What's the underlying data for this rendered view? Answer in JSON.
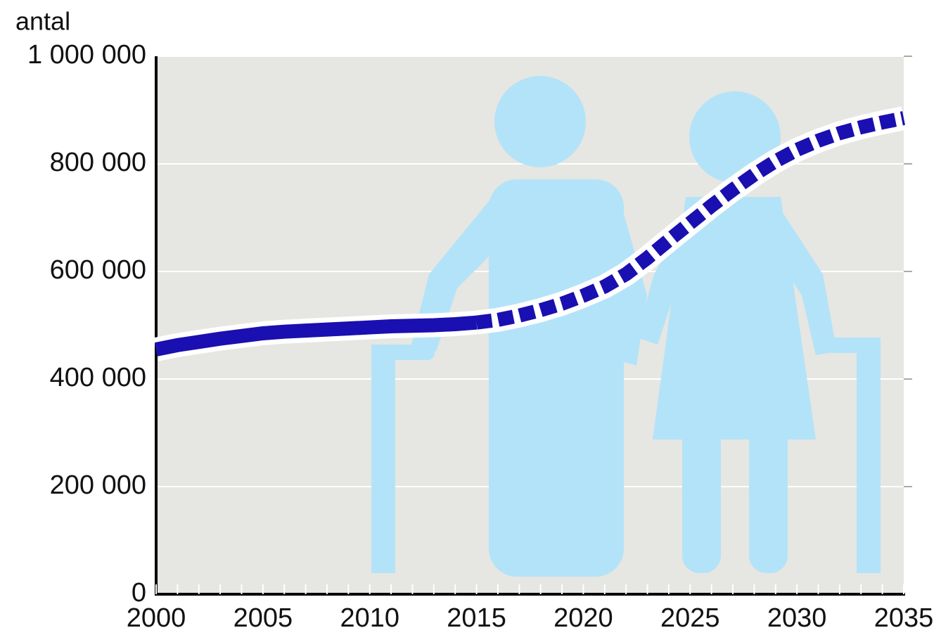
{
  "chart_data": {
    "type": "line",
    "y_label": "antal",
    "x": [
      2000,
      2001,
      2002,
      2003,
      2004,
      2005,
      2006,
      2007,
      2008,
      2009,
      2010,
      2011,
      2012,
      2013,
      2014,
      2015,
      2016,
      2017,
      2018,
      2019,
      2020,
      2021,
      2022,
      2023,
      2024,
      2025,
      2026,
      2027,
      2028,
      2029,
      2030,
      2031,
      2032,
      2033,
      2034,
      2035
    ],
    "series": [
      {
        "color": "#1a0fb0",
        "style": "solid",
        "values": [
          455000,
          463000,
          469000,
          475000,
          480000,
          485000,
          488000,
          490000,
          492000,
          494000,
          496000,
          498000,
          499000,
          500000,
          502000,
          505000,
          null,
          null,
          null,
          null,
          null,
          null,
          null,
          null,
          null,
          null,
          null,
          null,
          null,
          null,
          null,
          null,
          null,
          null,
          null,
          null
        ]
      },
      {
        "color": "#1a0fb0",
        "style": "dashed",
        "values": [
          null,
          null,
          null,
          null,
          null,
          null,
          null,
          null,
          null,
          null,
          null,
          null,
          null,
          null,
          null,
          505000,
          510000,
          518000,
          528000,
          540000,
          555000,
          572000,
          595000,
          625000,
          658000,
          690000,
          722000,
          752000,
          780000,
          805000,
          826000,
          843000,
          857000,
          868000,
          877000,
          885000
        ]
      }
    ],
    "xlim": [
      2000,
      2035
    ],
    "xticks": [
      2000,
      2005,
      2010,
      2015,
      2020,
      2025,
      2030,
      2035
    ],
    "ylim": [
      0,
      1000000
    ],
    "yticks": [
      0,
      {
        "value": 200000,
        "label": "200 000"
      },
      {
        "value": 400000,
        "label": "400 000"
      },
      {
        "value": 600000,
        "label": "600 000"
      },
      {
        "value": 800000,
        "label": "800 000"
      },
      {
        "value": 1000000,
        "label": "1 000 000"
      }
    ],
    "grid": true
  }
}
